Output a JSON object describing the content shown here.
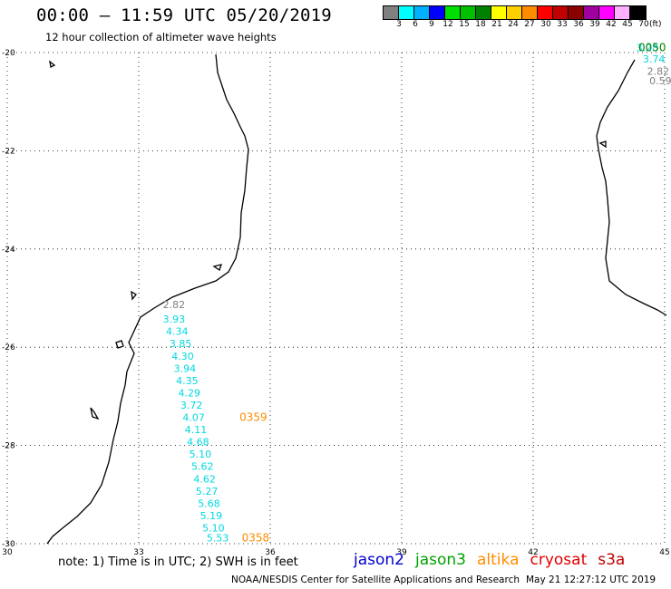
{
  "header": {
    "title": "00:00 – 11:59 UTC 05/20/2019",
    "subtitle": "12 hour collection of altimeter wave heights"
  },
  "legend": {
    "colors": [
      "#808080",
      "#00ffff",
      "#00b0ff",
      "#0000ff",
      "#00e000",
      "#00c000",
      "#008000",
      "#ffff00",
      "#ffd000",
      "#ff8c00",
      "#ff0000",
      "#c00000",
      "#8b0000",
      "#a000a0",
      "#ff00ff",
      "#ffb0ff",
      "#000000"
    ],
    "ticks": [
      "3",
      "6",
      "9",
      "12",
      "15",
      "18",
      "21",
      "24",
      "27",
      "30",
      "33",
      "36",
      "39",
      "42",
      "45",
      "70"
    ],
    "unit": "(ft)"
  },
  "map": {
    "lon_ticks": [
      30,
      33,
      36,
      39,
      42,
      45
    ],
    "lat_ticks": [
      -20,
      -22,
      -24,
      -26,
      -28,
      -30
    ],
    "lon_labels": [
      "30",
      "33",
      "36",
      "39",
      "42",
      "45"
    ],
    "lat_labels": [
      "-20",
      "-22",
      "-24",
      "-26",
      "-28",
      "-30"
    ],
    "swh_points": [
      {
        "lon": 33.55,
        "lat": -25.2,
        "value": "2.82",
        "color": "#808080"
      },
      {
        "lon": 33.55,
        "lat": -25.5,
        "value": "3.93",
        "color": "#00d8e0"
      },
      {
        "lon": 33.62,
        "lat": -25.75,
        "value": "4.34",
        "color": "#00d8e0"
      },
      {
        "lon": 33.7,
        "lat": -26.0,
        "value": "3.85",
        "color": "#00d8e0"
      },
      {
        "lon": 33.75,
        "lat": -26.25,
        "value": "4.30",
        "color": "#00d8e0"
      },
      {
        "lon": 33.8,
        "lat": -26.5,
        "value": "3.94",
        "color": "#00d8e0"
      },
      {
        "lon": 33.85,
        "lat": -26.75,
        "value": "4.35",
        "color": "#00d8e0"
      },
      {
        "lon": 33.9,
        "lat": -27.0,
        "value": "4.29",
        "color": "#00d8e0"
      },
      {
        "lon": 33.95,
        "lat": -27.25,
        "value": "3.72",
        "color": "#00d8e0"
      },
      {
        "lon": 34.0,
        "lat": -27.5,
        "value": "4.07",
        "color": "#00d8e0"
      },
      {
        "lon": 34.05,
        "lat": -27.75,
        "value": "4.11",
        "color": "#00d8e0"
      },
      {
        "lon": 34.1,
        "lat": -28.0,
        "value": "4.68",
        "color": "#00d8e0"
      },
      {
        "lon": 34.15,
        "lat": -28.25,
        "value": "5.10",
        "color": "#00d8e0"
      },
      {
        "lon": 34.2,
        "lat": -28.5,
        "value": "5.62",
        "color": "#00d8e0"
      },
      {
        "lon": 34.25,
        "lat": -28.75,
        "value": "4.62",
        "color": "#00d8e0"
      },
      {
        "lon": 34.3,
        "lat": -29.0,
        "value": "5.27",
        "color": "#00d8e0"
      },
      {
        "lon": 34.35,
        "lat": -29.25,
        "value": "5.68",
        "color": "#00d8e0"
      },
      {
        "lon": 34.4,
        "lat": -29.5,
        "value": "5.19",
        "color": "#00d8e0"
      },
      {
        "lon": 34.45,
        "lat": -29.75,
        "value": "5.10",
        "color": "#00d8e0"
      },
      {
        "lon": 34.55,
        "lat": -29.95,
        "value": "5.53",
        "color": "#00d8e0"
      },
      {
        "lon": 44.35,
        "lat": -19.97,
        "value": "3.28",
        "color": "#00d8e0"
      },
      {
        "lon": 44.5,
        "lat": -20.2,
        "value": "3.74",
        "color": "#00d8e0"
      },
      {
        "lon": 44.6,
        "lat": -20.45,
        "value": "2.82",
        "color": "#808080"
      },
      {
        "lon": 44.65,
        "lat": -20.65,
        "value": "0.59",
        "color": "#808080"
      }
    ],
    "time_labels": [
      {
        "lon": 35.3,
        "lat": -27.5,
        "text": "0359",
        "color": "#ff8c00"
      },
      {
        "lon": 35.35,
        "lat": -29.95,
        "text": "0358",
        "color": "#ff8c00"
      },
      {
        "lon": 45.55,
        "lat": -19.97,
        "text": "0050",
        "color": "#008000"
      }
    ]
  },
  "note": "note: 1) Time is in UTC; 2) SWH is in feet",
  "satellites": [
    {
      "name": "jason2",
      "color": "#0000cc"
    },
    {
      "name": "jason3",
      "color": "#00a000"
    },
    {
      "name": "altika",
      "color": "#ff8c00"
    },
    {
      "name": "cryosat",
      "color": "#e00000"
    },
    {
      "name": "s3a",
      "color": "#c00000"
    }
  ],
  "footer": {
    "left": "NOAA/NESDIS Center for Satellite Applications and Research",
    "right": "May 21 12:27:12 UTC 2019"
  }
}
